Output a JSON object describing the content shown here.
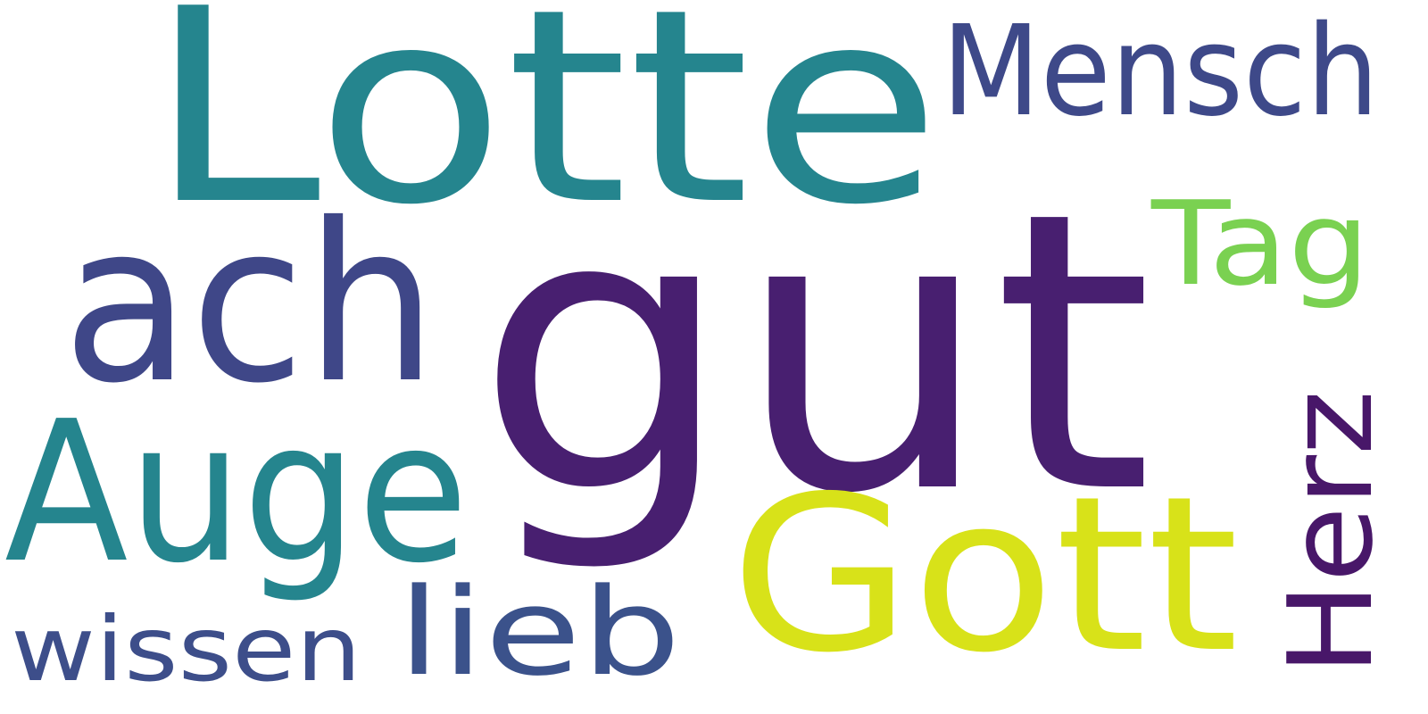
{
  "words": [
    {
      "key": "gut",
      "text": "gut",
      "color": "#481f70"
    },
    {
      "key": "lotte",
      "text": "Lotte",
      "color": "#25858e"
    },
    {
      "key": "ach",
      "text": "ach",
      "color": "#3f4788"
    },
    {
      "key": "auge",
      "text": "Auge",
      "color": "#25858e"
    },
    {
      "key": "gott",
      "text": "Gott",
      "color": "#d8e219"
    },
    {
      "key": "mensch",
      "text": "Mensch",
      "color": "#3e4989"
    },
    {
      "key": "tag",
      "text": "Tag",
      "color": "#7ad151"
    },
    {
      "key": "herz",
      "text": "Herz",
      "color": "#481769"
    },
    {
      "key": "wissen",
      "text": "wissen",
      "color": "#3d4e8a"
    },
    {
      "key": "lieb",
      "text": "lieb",
      "color": "#3b528b"
    }
  ]
}
